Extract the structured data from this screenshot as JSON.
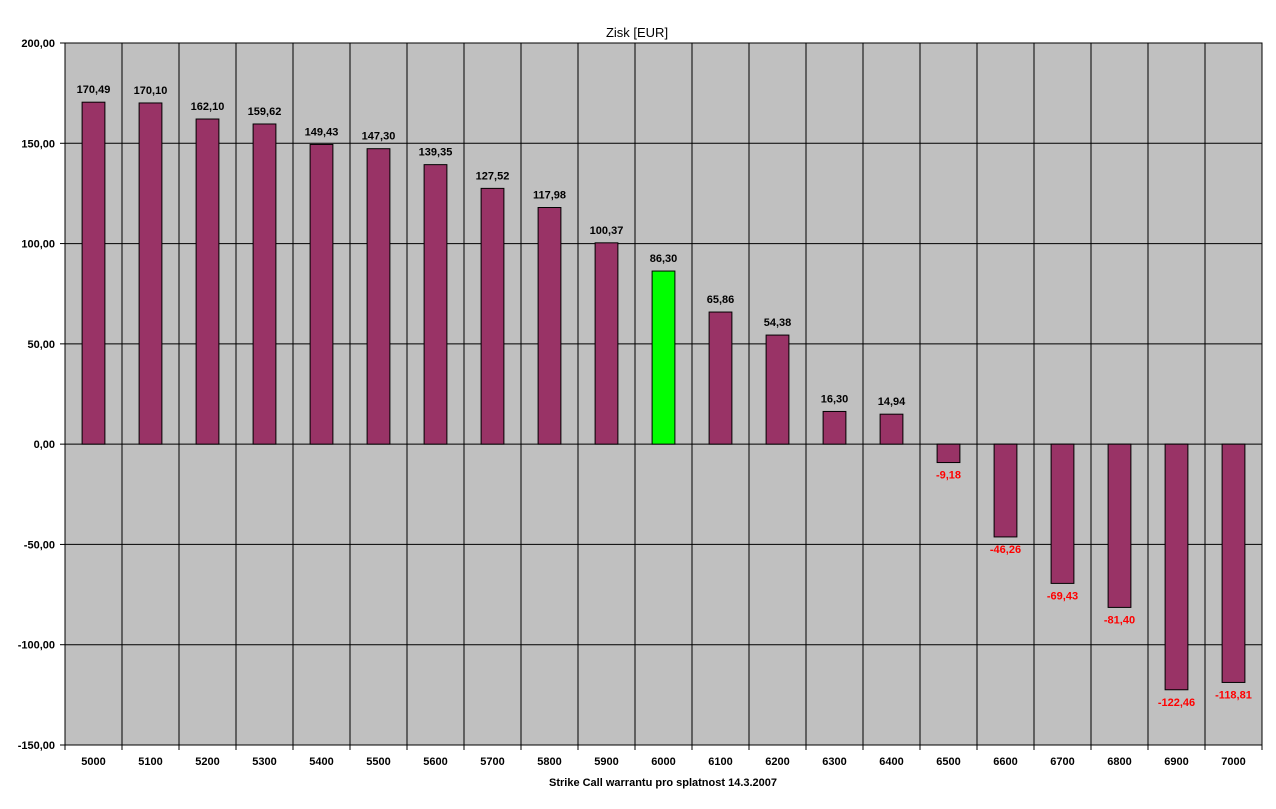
{
  "chart_data": {
    "type": "bar",
    "title": "Zisk [EUR]",
    "xlabel": "Strike Call warrantu pro splatnost 14.3.2007",
    "ylabel": "",
    "ylim": [
      -150,
      200
    ],
    "y_ticks": [
      200,
      150,
      100,
      50,
      0,
      -50,
      -100,
      -150
    ],
    "y_tick_labels": [
      "200,00",
      "150,00",
      "100,00",
      "50,00",
      "0,00",
      "-50,00",
      "-100,00",
      "-150,00"
    ],
    "grid": true,
    "categories": [
      "5000",
      "5100",
      "5200",
      "5300",
      "5400",
      "5500",
      "5600",
      "5700",
      "5800",
      "5900",
      "6000",
      "6100",
      "6200",
      "6300",
      "6400",
      "6500",
      "6600",
      "6700",
      "6800",
      "6900",
      "7000"
    ],
    "values": [
      170.49,
      170.1,
      162.1,
      159.62,
      149.43,
      147.3,
      139.35,
      127.52,
      117.98,
      100.37,
      86.3,
      65.86,
      54.38,
      16.3,
      14.94,
      -9.18,
      -46.26,
      -69.43,
      -81.4,
      -122.46,
      -118.81
    ],
    "data_labels": [
      "170,49",
      "170,10",
      "162,10",
      "159,62",
      "149,43",
      "147,30",
      "139,35",
      "127,52",
      "117,98",
      "100,37",
      "86,30",
      "65,86",
      "54,38",
      "16,30",
      "14,94",
      "-9,18",
      "-46,26",
      "-69,43",
      "-81,40",
      "-122,46",
      "-118,81"
    ],
    "highlight_index": 10,
    "colors": {
      "bar": "#993366",
      "highlight": "#00ff00",
      "plot_background": "#c0c0c0",
      "grid": "#000000",
      "positive_label": "#000000",
      "negative_label": "#ff0000"
    }
  }
}
